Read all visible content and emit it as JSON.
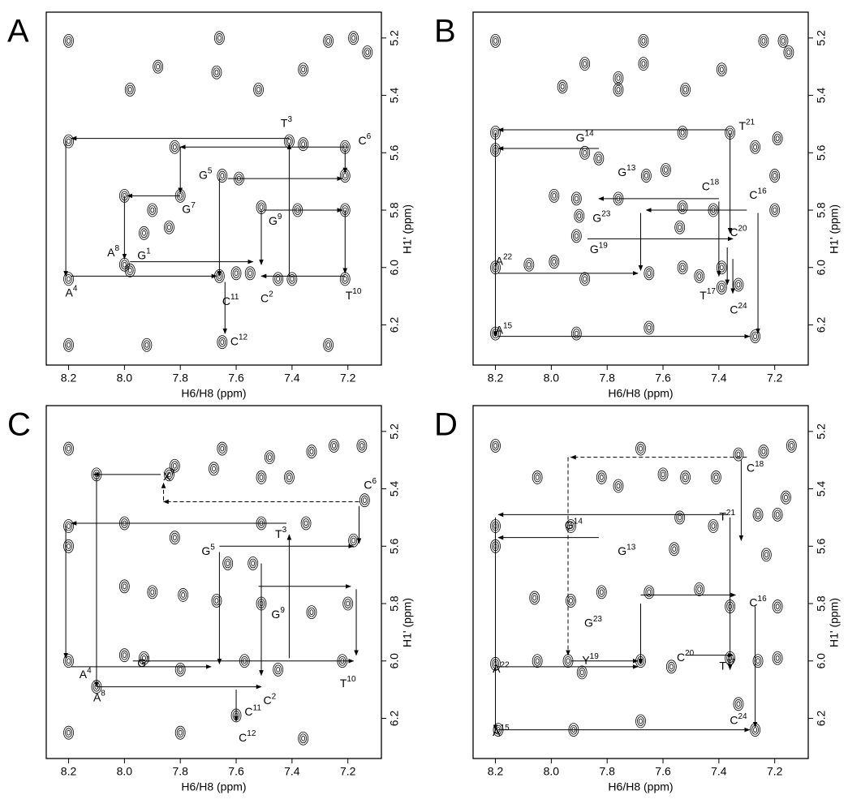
{
  "chart_data": [
    {
      "type": "contour",
      "title": "A",
      "x_label": "H6/H8 (ppm)",
      "y_label": "H1' (ppm)",
      "xlim": [
        8.28,
        7.08
      ],
      "ylim": [
        6.34,
        5.11
      ],
      "xticks": [
        8.2,
        {
          "value": 8,
          "label": "8.0"
        },
        7.8,
        7.6,
        7.4,
        7.2
      ],
      "yticks": [
        5.2,
        5.4,
        5.6,
        5.8,
        {
          "value": 6,
          "label": "6.0"
        },
        6.2
      ],
      "peaks": {
        "x": [
          8.2,
          7.66,
          7.27,
          7.18,
          7.36,
          7.52,
          7.67,
          7.98,
          7.88,
          7.13,
          8.2,
          7.82,
          7.41,
          7.36,
          7.21,
          7.65,
          7.59,
          7.21,
          8.0,
          7.8,
          7.9,
          7.51,
          7.38,
          7.21,
          7.93,
          7.84,
          8.0,
          7.98,
          8.2,
          7.66,
          7.6,
          7.55,
          7.45,
          7.4,
          7.21,
          8.2,
          7.92,
          7.65,
          7.27
        ],
        "y": [
          5.21,
          5.2,
          5.21,
          5.2,
          5.31,
          5.38,
          5.32,
          5.38,
          5.3,
          5.25,
          5.56,
          5.58,
          5.56,
          5.57,
          5.58,
          5.68,
          5.69,
          5.68,
          5.75,
          5.75,
          5.8,
          5.79,
          5.8,
          5.8,
          5.88,
          5.86,
          5.99,
          6.01,
          6.04,
          6.03,
          6.02,
          6.02,
          6.04,
          6.04,
          6.04,
          6.27,
          6.27,
          6.26,
          6.27
        ]
      },
      "walk": [
        {
          "x1": 7.41,
          "y1": 5.55,
          "x2": 8.19,
          "y2": 5.55
        },
        {
          "x1": 7.2,
          "y1": 5.58,
          "x2": 7.8,
          "y2": 5.58
        },
        {
          "x1": 8.21,
          "y1": 5.56,
          "x2": 8.21,
          "y2": 6.03
        },
        {
          "x1": 7.41,
          "y1": 6.03,
          "x2": 7.41,
          "y2": 5.57
        },
        {
          "x1": 7.21,
          "y1": 5.59,
          "x2": 7.21,
          "y2": 5.67
        },
        {
          "x1": 7.63,
          "y1": 5.69,
          "x2": 7.22,
          "y2": 5.69
        },
        {
          "x1": 7.8,
          "y1": 5.58,
          "x2": 7.8,
          "y2": 5.74
        },
        {
          "x1": 7.8,
          "y1": 5.75,
          "x2": 7.99,
          "y2": 5.75
        },
        {
          "x1": 8.0,
          "y1": 5.75,
          "x2": 8.0,
          "y2": 5.97
        },
        {
          "x1": 7.98,
          "y1": 5.98,
          "x2": 7.54,
          "y2": 5.98
        },
        {
          "x1": 8.19,
          "y1": 6.03,
          "x2": 7.67,
          "y2": 6.03
        },
        {
          "x1": 7.66,
          "y1": 5.69,
          "x2": 7.66,
          "y2": 6.03
        },
        {
          "x1": 7.64,
          "y1": 6.05,
          "x2": 7.64,
          "y2": 6.23
        },
        {
          "x1": 7.51,
          "y1": 5.8,
          "x2": 7.51,
          "y2": 5.99
        },
        {
          "x1": 7.5,
          "y1": 5.8,
          "x2": 7.22,
          "y2": 5.8
        },
        {
          "x1": 7.21,
          "y1": 5.8,
          "x2": 7.21,
          "y2": 6.02
        },
        {
          "x1": 7.21,
          "y1": 6.03,
          "x2": 7.51,
          "y2": 6.03
        }
      ],
      "labels": [
        {
          "text": "T",
          "sup": "3",
          "x": 7.42,
          "y": 5.5
        },
        {
          "text": "C",
          "sup": "6",
          "x": 7.14,
          "y": 5.56
        },
        {
          "text": "G",
          "sup": "5",
          "x": 7.71,
          "y": 5.68
        },
        {
          "text": "G",
          "sup": "7",
          "x": 7.77,
          "y": 5.8
        },
        {
          "text": "G",
          "sup": "9",
          "x": 7.46,
          "y": 5.84
        },
        {
          "text": "A",
          "sup": "8",
          "x": 8.04,
          "y": 5.95
        },
        {
          "text": "G",
          "sup": "1",
          "x": 7.93,
          "y": 5.96
        },
        {
          "text": "A",
          "sup": "4",
          "x": 8.19,
          "y": 6.09
        },
        {
          "text": "C",
          "sup": "11",
          "x": 7.62,
          "y": 6.12
        },
        {
          "text": "C",
          "sup": "2",
          "x": 7.49,
          "y": 6.11
        },
        {
          "text": "T",
          "sup": "10",
          "x": 7.18,
          "y": 6.1
        },
        {
          "text": "C",
          "sup": "12",
          "x": 7.59,
          "y": 6.26
        }
      ]
    },
    {
      "type": "contour",
      "title": "B",
      "x_label": "H6/H8 (ppm)",
      "y_label": "H1' (ppm)",
      "xlim": [
        8.28,
        7.08
      ],
      "ylim": [
        6.34,
        5.11
      ],
      "xticks": [
        8.2,
        {
          "value": 8,
          "label": "8.0"
        },
        7.8,
        7.6,
        7.4,
        7.2
      ],
      "yticks": [
        5.2,
        5.4,
        5.6,
        5.8,
        {
          "value": 6,
          "label": "6.0"
        },
        6.2
      ],
      "peaks": {
        "x": [
          8.2,
          7.67,
          7.67,
          7.76,
          7.88,
          7.96,
          7.76,
          7.52,
          7.39,
          7.24,
          7.17,
          7.15,
          8.2,
          8.2,
          7.53,
          7.36,
          7.27,
          7.19,
          7.88,
          7.83,
          7.66,
          7.59,
          7.2,
          7.99,
          7.91,
          7.9,
          7.76,
          7.53,
          7.42,
          7.2,
          7.91,
          7.54,
          8.08,
          7.99,
          8.2,
          7.88,
          7.65,
          7.53,
          7.47,
          7.39,
          7.39,
          7.33,
          8.2,
          7.91,
          7.65,
          7.27
        ],
        "y": [
          5.21,
          5.21,
          5.29,
          5.34,
          5.29,
          5.37,
          5.38,
          5.38,
          5.31,
          5.21,
          5.21,
          5.25,
          5.53,
          5.59,
          5.53,
          5.53,
          5.58,
          5.55,
          5.6,
          5.62,
          5.68,
          5.66,
          5.68,
          5.75,
          5.76,
          5.82,
          5.76,
          5.79,
          5.8,
          5.8,
          5.89,
          5.86,
          5.99,
          5.98,
          6.0,
          6.04,
          6.02,
          6.0,
          6.03,
          6.0,
          6.07,
          6.06,
          6.23,
          6.23,
          6.21,
          6.24
        ]
      },
      "walk": [
        {
          "x1": 7.37,
          "y1": 5.52,
          "x2": 8.19,
          "y2": 5.52
        },
        {
          "x1": 7.83,
          "y1": 5.585,
          "x2": 8.19,
          "y2": 5.585
        },
        {
          "x1": 8.2,
          "y1": 5.53,
          "x2": 8.2,
          "y2": 6.24
        },
        {
          "x1": 8.19,
          "y1": 6.02,
          "x2": 7.69,
          "y2": 6.02
        },
        {
          "x1": 7.68,
          "y1": 5.81,
          "x2": 7.68,
          "y2": 6.01
        },
        {
          "x1": 7.4,
          "y1": 5.76,
          "x2": 7.83,
          "y2": 5.76
        },
        {
          "x1": 7.3,
          "y1": 5.8,
          "x2": 7.66,
          "y2": 5.8
        },
        {
          "x1": 7.4,
          "y1": 5.77,
          "x2": 7.4,
          "y2": 6.03
        },
        {
          "x1": 7.36,
          "y1": 5.53,
          "x2": 7.36,
          "y2": 5.88
        },
        {
          "x1": 7.87,
          "y1": 5.9,
          "x2": 7.35,
          "y2": 5.9
        },
        {
          "x1": 7.26,
          "y1": 5.81,
          "x2": 7.26,
          "y2": 6.23
        },
        {
          "x1": 8.19,
          "y1": 6.24,
          "x2": 7.29,
          "y2": 6.24
        },
        {
          "x1": 7.37,
          "y1": 5.93,
          "x2": 7.37,
          "y2": 6.06
        },
        {
          "x1": 7.35,
          "y1": 5.97,
          "x2": 7.35,
          "y2": 6.09
        }
      ],
      "labels": [
        {
          "text": "T",
          "sup": "21",
          "x": 7.3,
          "y": 5.51
        },
        {
          "text": "G",
          "sup": "14",
          "x": 7.88,
          "y": 5.55
        },
        {
          "text": "G",
          "sup": "13",
          "x": 7.73,
          "y": 5.67
        },
        {
          "text": "C",
          "sup": "18",
          "x": 7.43,
          "y": 5.72
        },
        {
          "text": "C",
          "sup": "16",
          "x": 7.26,
          "y": 5.75
        },
        {
          "text": "G",
          "sup": "23",
          "x": 7.82,
          "y": 5.83
        },
        {
          "text": "C",
          "sup": "20",
          "x": 7.33,
          "y": 5.88
        },
        {
          "text": "G",
          "sup": "19",
          "x": 7.83,
          "y": 5.94
        },
        {
          "text": "A",
          "sup": "22",
          "x": 8.17,
          "y": 5.98
        },
        {
          "text": "T",
          "sup": "17",
          "x": 7.44,
          "y": 6.1
        },
        {
          "text": "C",
          "sup": "24",
          "x": 7.33,
          "y": 6.15
        },
        {
          "text": "A",
          "sup": "15",
          "x": 8.17,
          "y": 6.22
        }
      ]
    },
    {
      "type": "contour",
      "title": "C",
      "x_label": "H6/H8 (ppm)",
      "y_label": "H1' (ppm)",
      "xlim": [
        8.28,
        7.08
      ],
      "ylim": [
        6.34,
        5.11
      ],
      "xticks": [
        8.2,
        {
          "value": 8,
          "label": "8.0"
        },
        7.8,
        7.6,
        7.4,
        7.2
      ],
      "yticks": [
        5.2,
        5.4,
        5.6,
        5.8,
        {
          "value": 6,
          "label": "6.0"
        },
        6.2
      ],
      "peaks": {
        "x": [
          8.2,
          7.65,
          7.82,
          7.84,
          8.1,
          7.51,
          7.41,
          7.48,
          7.33,
          7.25,
          7.15,
          7.68,
          7.14,
          8.2,
          8.2,
          8.0,
          7.82,
          7.51,
          7.35,
          7.18,
          7.63,
          7.54,
          8.0,
          7.9,
          7.79,
          7.67,
          7.51,
          7.33,
          7.2,
          8.0,
          7.93,
          8.2,
          7.8,
          7.57,
          7.45,
          7.22,
          8.1,
          8.2,
          7.8,
          7.6,
          7.36
        ],
        "y": [
          5.26,
          5.26,
          5.32,
          5.35,
          5.35,
          5.36,
          5.36,
          5.29,
          5.27,
          5.25,
          5.25,
          5.33,
          5.44,
          5.53,
          5.6,
          5.52,
          5.57,
          5.52,
          5.52,
          5.58,
          5.66,
          5.66,
          5.74,
          5.76,
          5.77,
          5.79,
          5.8,
          5.83,
          5.8,
          5.98,
          5.99,
          6.0,
          6.03,
          6.0,
          6.03,
          6.0,
          6.09,
          6.25,
          6.25,
          6.19,
          6.27
        ]
      },
      "walk": [
        {
          "x1": 7.87,
          "y1": 5.35,
          "x2": 8.11,
          "y2": 5.35
        },
        {
          "x1": 8.1,
          "y1": 5.36,
          "x2": 8.1,
          "y2": 6.09
        },
        {
          "x1": 7.16,
          "y1": 5.445,
          "x2": 7.86,
          "y2": 5.445,
          "dashed": true
        },
        {
          "x1": 7.86,
          "y1": 5.44,
          "x2": 7.86,
          "y2": 5.38,
          "dashed": true
        },
        {
          "x1": 7.16,
          "y1": 5.46,
          "x2": 7.16,
          "y2": 5.59
        },
        {
          "x1": 7.42,
          "y1": 5.52,
          "x2": 8.19,
          "y2": 5.52
        },
        {
          "x1": 8.21,
          "y1": 5.53,
          "x2": 8.21,
          "y2": 5.99
        },
        {
          "x1": 7.66,
          "y1": 5.6,
          "x2": 7.18,
          "y2": 5.6
        },
        {
          "x1": 7.52,
          "y1": 5.74,
          "x2": 7.19,
          "y2": 5.74
        },
        {
          "x1": 7.17,
          "y1": 5.75,
          "x2": 7.17,
          "y2": 5.98
        },
        {
          "x1": 7.97,
          "y1": 6.0,
          "x2": 7.18,
          "y2": 6.0
        },
        {
          "x1": 8.19,
          "y1": 6.02,
          "x2": 7.69,
          "y2": 6.02
        },
        {
          "x1": 7.66,
          "y1": 5.62,
          "x2": 7.66,
          "y2": 6.01
        },
        {
          "x1": 8.1,
          "y1": 6.09,
          "x2": 7.51,
          "y2": 6.09
        },
        {
          "x1": 7.51,
          "y1": 5.66,
          "x2": 7.51,
          "y2": 6.05
        },
        {
          "x1": 7.41,
          "y1": 5.99,
          "x2": 7.41,
          "y2": 5.56
        },
        {
          "x1": 7.6,
          "y1": 6.1,
          "x2": 7.6,
          "y2": 6.21
        }
      ],
      "labels": [
        {
          "text": "X",
          "sup": "7",
          "x": 7.84,
          "y": 5.36
        },
        {
          "text": "C",
          "sup": "6",
          "x": 7.12,
          "y": 5.39
        },
        {
          "text": "T",
          "sup": "3",
          "x": 7.44,
          "y": 5.56
        },
        {
          "text": "G",
          "sup": "5",
          "x": 7.7,
          "y": 5.62
        },
        {
          "text": "G",
          "sup": "9",
          "x": 7.45,
          "y": 5.84
        },
        {
          "text": "T",
          "sup": "10",
          "x": 7.2,
          "y": 6.08
        },
        {
          "text": "G",
          "sup": "1",
          "x": 7.93,
          "y": 6.01
        },
        {
          "text": "A",
          "sup": "4",
          "x": 8.14,
          "y": 6.05
        },
        {
          "text": "A",
          "sup": "8",
          "x": 8.09,
          "y": 6.13
        },
        {
          "text": "C",
          "sup": "2",
          "x": 7.48,
          "y": 6.14
        },
        {
          "text": "C",
          "sup": "11",
          "x": 7.54,
          "y": 6.18
        },
        {
          "text": "C",
          "sup": "12",
          "x": 7.56,
          "y": 6.27
        }
      ]
    },
    {
      "type": "contour",
      "title": "D",
      "x_label": "H6/H8 (ppm)",
      "y_label": "H1' (ppm)",
      "xlim": [
        8.28,
        7.08
      ],
      "ylim": [
        6.34,
        5.11
      ],
      "xticks": [
        8.2,
        {
          "value": 8,
          "label": "8.0"
        },
        7.8,
        7.6,
        7.4,
        7.2
      ],
      "yticks": [
        5.2,
        5.4,
        5.6,
        5.8,
        {
          "value": 6,
          "label": "6.0"
        },
        6.2
      ],
      "peaks": {
        "x": [
          8.2,
          7.68,
          8.05,
          7.82,
          7.76,
          7.6,
          7.52,
          7.41,
          7.33,
          7.24,
          7.14,
          7.16,
          8.2,
          8.2,
          7.93,
          7.54,
          7.42,
          7.26,
          7.19,
          7.23,
          7.56,
          8.06,
          7.93,
          7.82,
          7.65,
          7.47,
          7.36,
          7.19,
          8.05,
          7.94,
          8.2,
          7.89,
          7.68,
          7.57,
          7.36,
          7.26,
          7.19,
          8.19,
          7.92,
          7.68,
          7.27,
          7.33
        ],
        "y": [
          5.25,
          5.26,
          5.36,
          5.36,
          5.39,
          5.35,
          5.36,
          5.36,
          5.28,
          5.27,
          5.25,
          5.43,
          5.53,
          5.6,
          5.53,
          5.5,
          5.53,
          5.49,
          5.49,
          5.63,
          5.61,
          5.78,
          5.79,
          5.76,
          5.76,
          5.75,
          5.81,
          5.81,
          6.0,
          6.0,
          6.01,
          6.04,
          6.0,
          6.02,
          5.99,
          6.0,
          5.99,
          6.24,
          6.24,
          6.21,
          6.24,
          6.15
        ]
      },
      "walk": [
        {
          "x1": 7.3,
          "y1": 5.29,
          "x2": 7.93,
          "y2": 5.29,
          "dashed": true
        },
        {
          "x1": 7.94,
          "y1": 5.29,
          "x2": 7.94,
          "y2": 5.98,
          "dashed": true
        },
        {
          "x1": 7.32,
          "y1": 5.3,
          "x2": 7.32,
          "y2": 5.58
        },
        {
          "x1": 7.37,
          "y1": 5.49,
          "x2": 8.19,
          "y2": 5.49
        },
        {
          "x1": 7.83,
          "y1": 5.57,
          "x2": 8.19,
          "y2": 5.57
        },
        {
          "x1": 8.2,
          "y1": 5.5,
          "x2": 8.2,
          "y2": 6.24
        },
        {
          "x1": 7.93,
          "y1": 6.0,
          "x2": 7.69,
          "y2": 6.0
        },
        {
          "x1": 8.19,
          "y1": 6.02,
          "x2": 7.69,
          "y2": 6.02
        },
        {
          "x1": 7.68,
          "y1": 5.8,
          "x2": 7.68,
          "y2": 6.01
        },
        {
          "x1": 7.68,
          "y1": 5.77,
          "x2": 7.34,
          "y2": 5.77
        },
        {
          "x1": 7.36,
          "y1": 5.5,
          "x2": 7.36,
          "y2": 6.03
        },
        {
          "x1": 7.27,
          "y1": 5.81,
          "x2": 7.27,
          "y2": 6.23
        },
        {
          "x1": 8.19,
          "y1": 6.24,
          "x2": 7.29,
          "y2": 6.24
        },
        {
          "x1": 7.52,
          "y1": 5.98,
          "x2": 7.35,
          "y2": 5.98
        }
      ],
      "labels": [
        {
          "text": "C",
          "sup": "18",
          "x": 7.27,
          "y": 5.33
        },
        {
          "text": "T",
          "sup": "21",
          "x": 7.37,
          "y": 5.5
        },
        {
          "text": "G",
          "sup": "14",
          "x": 7.92,
          "y": 5.53
        },
        {
          "text": "G",
          "sup": "13",
          "x": 7.73,
          "y": 5.62
        },
        {
          "text": "C",
          "sup": "16",
          "x": 7.26,
          "y": 5.8
        },
        {
          "text": "G",
          "sup": "23",
          "x": 7.85,
          "y": 5.87
        },
        {
          "text": "C",
          "sup": "20",
          "x": 7.52,
          "y": 5.99
        },
        {
          "text": "Y",
          "sup": "19",
          "x": 7.86,
          "y": 6.0
        },
        {
          "text": "T",
          "sup": "17",
          "x": 7.37,
          "y": 6.02
        },
        {
          "text": "A",
          "sup": "22",
          "x": 8.18,
          "y": 6.03
        },
        {
          "text": "C",
          "sup": "24",
          "x": 7.33,
          "y": 6.21
        },
        {
          "text": "A",
          "sup": "15",
          "x": 8.18,
          "y": 6.25
        }
      ]
    }
  ]
}
